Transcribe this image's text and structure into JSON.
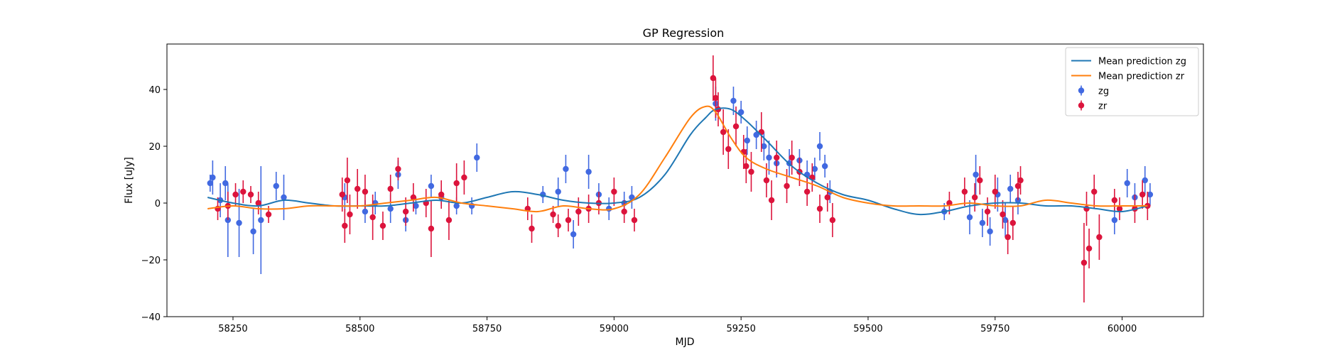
{
  "chart_data": {
    "type": "scatter",
    "title": "GP Regression",
    "xlabel": "MJD",
    "ylabel": "Flux [uJy]",
    "xlim": [
      58120,
      60160
    ],
    "ylim": [
      -40,
      56
    ],
    "xticks": [
      58250,
      58500,
      58750,
      59000,
      59250,
      59500,
      59750,
      60000
    ],
    "yticks": [
      -40,
      -20,
      0,
      20,
      40
    ],
    "grid": false,
    "legend_position": "top-right",
    "colors": {
      "zg_mean": "#1f77b4",
      "zr_mean": "#ff7f0e",
      "zg_points": "#4169e1",
      "zr_points": "#dc143c"
    },
    "legend": [
      {
        "label": "Mean prediction zg",
        "kind": "line",
        "color": "#1f77b4"
      },
      {
        "label": "Mean prediction zr",
        "kind": "line",
        "color": "#ff7f0e"
      },
      {
        "label": "zg",
        "kind": "errorbar",
        "color": "#4169e1"
      },
      {
        "label": "zr",
        "kind": "errorbar",
        "color": "#dc143c"
      }
    ],
    "series": [
      {
        "name": "Mean prediction zg",
        "kind": "line",
        "color": "#1f77b4",
        "x": [
          58200,
          58250,
          58300,
          58350,
          58400,
          58450,
          58500,
          58550,
          58600,
          58650,
          58700,
          58750,
          58800,
          58850,
          58900,
          58950,
          59000,
          59050,
          59100,
          59150,
          59180,
          59200,
          59230,
          59260,
          59300,
          59350,
          59400,
          59450,
          59500,
          59550,
          59600,
          59650,
          59700,
          59750,
          59800,
          59850,
          59900,
          59950,
          60000,
          60050
        ],
        "y": [
          2,
          0,
          -1,
          1,
          0,
          -1,
          -1,
          -1,
          0,
          1,
          0,
          2,
          4,
          3,
          1,
          0,
          0,
          2,
          10,
          24,
          30,
          33,
          33,
          29,
          22,
          13,
          7,
          3,
          1,
          -2,
          -4,
          -3,
          -1,
          0,
          0,
          -1,
          -1,
          -2,
          -3,
          -1
        ]
      },
      {
        "name": "Mean prediction zr",
        "kind": "line",
        "color": "#ff7f0e",
        "x": [
          58200,
          58250,
          58300,
          58350,
          58400,
          58450,
          58500,
          58550,
          58600,
          58650,
          58700,
          58750,
          58800,
          58850,
          58900,
          58950,
          59000,
          59050,
          59100,
          59150,
          59180,
          59200,
          59230,
          59260,
          59300,
          59350,
          59400,
          59450,
          59500,
          59550,
          59600,
          59650,
          59700,
          59750,
          59800,
          59850,
          59900,
          59950,
          60000,
          60050
        ],
        "y": [
          -2,
          -1,
          -2,
          -2,
          -1,
          -1,
          -1,
          0,
          1,
          2,
          0,
          -1,
          -2,
          -3,
          -1,
          -2,
          -2,
          3,
          16,
          30,
          34,
          32,
          23,
          16,
          12,
          9,
          6,
          2,
          0,
          -1,
          -1,
          -1,
          0,
          -1,
          -1,
          1,
          0,
          -1,
          -1,
          -1
        ]
      },
      {
        "name": "zg",
        "kind": "errorbar",
        "color": "#4169e1",
        "points": [
          [
            58205,
            7,
            3
          ],
          [
            58210,
            9,
            6
          ],
          [
            58225,
            1,
            6
          ],
          [
            58235,
            7,
            6
          ],
          [
            58240,
            -6,
            13
          ],
          [
            58262,
            -7,
            12
          ],
          [
            58290,
            -10,
            8
          ],
          [
            58305,
            -6,
            19
          ],
          [
            58335,
            6,
            5
          ],
          [
            58350,
            2,
            8
          ],
          [
            58470,
            2,
            5
          ],
          [
            58510,
            -3,
            4
          ],
          [
            58530,
            0,
            4
          ],
          [
            58560,
            -2,
            5
          ],
          [
            58575,
            10,
            5
          ],
          [
            58590,
            -6,
            4
          ],
          [
            58610,
            -1,
            3
          ],
          [
            58640,
            6,
            4
          ],
          [
            58660,
            2,
            3
          ],
          [
            58690,
            -1,
            3
          ],
          [
            58720,
            -1,
            3
          ],
          [
            58730,
            16,
            5
          ],
          [
            58860,
            3,
            3
          ],
          [
            58890,
            4,
            5
          ],
          [
            58905,
            12,
            5
          ],
          [
            58920,
            -11,
            5
          ],
          [
            58950,
            11,
            6
          ],
          [
            58970,
            3,
            4
          ],
          [
            58990,
            -2,
            4
          ],
          [
            59020,
            0,
            4
          ],
          [
            59035,
            2,
            4
          ],
          [
            59200,
            35,
            6
          ],
          [
            59235,
            36,
            5
          ],
          [
            59250,
            32,
            4
          ],
          [
            59262,
            22,
            5
          ],
          [
            59280,
            24,
            5
          ],
          [
            59295,
            20,
            5
          ],
          [
            59305,
            16,
            6
          ],
          [
            59320,
            14,
            5
          ],
          [
            59345,
            14,
            5
          ],
          [
            59365,
            15,
            4
          ],
          [
            59380,
            10,
            5
          ],
          [
            59395,
            12,
            4
          ],
          [
            59405,
            20,
            5
          ],
          [
            59415,
            13,
            4
          ],
          [
            59425,
            4,
            4
          ],
          [
            59650,
            -3,
            3
          ],
          [
            59700,
            -5,
            6
          ],
          [
            59712,
            10,
            7
          ],
          [
            59725,
            -7,
            5
          ],
          [
            59740,
            -10,
            5
          ],
          [
            59755,
            3,
            6
          ],
          [
            59770,
            -6,
            6
          ],
          [
            59780,
            5,
            5
          ],
          [
            59795,
            1,
            5
          ],
          [
            59985,
            -6,
            5
          ],
          [
            60010,
            7,
            5
          ],
          [
            60025,
            2,
            5
          ],
          [
            60045,
            8,
            5
          ],
          [
            60055,
            3,
            4
          ]
        ]
      },
      {
        "name": "zr",
        "kind": "errorbar",
        "color": "#dc143c",
        "points": [
          [
            58220,
            -2,
            4
          ],
          [
            58240,
            -1,
            5
          ],
          [
            58255,
            3,
            4
          ],
          [
            58270,
            4,
            4
          ],
          [
            58285,
            3,
            3
          ],
          [
            58300,
            0,
            4
          ],
          [
            58320,
            -4,
            3
          ],
          [
            58465,
            3,
            6
          ],
          [
            58470,
            -8,
            6
          ],
          [
            58475,
            8,
            8
          ],
          [
            58480,
            -4,
            7
          ],
          [
            58495,
            5,
            7
          ],
          [
            58510,
            4,
            6
          ],
          [
            58525,
            -5,
            8
          ],
          [
            58545,
            -8,
            5
          ],
          [
            58560,
            5,
            5
          ],
          [
            58575,
            12,
            4
          ],
          [
            58590,
            -3,
            5
          ],
          [
            58605,
            2,
            5
          ],
          [
            58630,
            0,
            5
          ],
          [
            58640,
            -9,
            10
          ],
          [
            58660,
            3,
            5
          ],
          [
            58675,
            -6,
            7
          ],
          [
            58690,
            7,
            7
          ],
          [
            58705,
            9,
            6
          ],
          [
            58830,
            -2,
            4
          ],
          [
            58838,
            -9,
            5
          ],
          [
            58880,
            -4,
            3
          ],
          [
            58890,
            -8,
            4
          ],
          [
            58910,
            -6,
            4
          ],
          [
            58930,
            -3,
            5
          ],
          [
            58950,
            -2,
            5
          ],
          [
            58970,
            0,
            4
          ],
          [
            59000,
            4,
            5
          ],
          [
            59020,
            -3,
            4
          ],
          [
            59040,
            -6,
            4
          ],
          [
            59195,
            44,
            8
          ],
          [
            59200,
            37,
            7
          ],
          [
            59205,
            33,
            6
          ],
          [
            59215,
            25,
            8
          ],
          [
            59225,
            19,
            7
          ],
          [
            59240,
            27,
            7
          ],
          [
            59255,
            18,
            6
          ],
          [
            59260,
            13,
            6
          ],
          [
            59270,
            11,
            7
          ],
          [
            59290,
            25,
            7
          ],
          [
            59300,
            8,
            6
          ],
          [
            59310,
            1,
            7
          ],
          [
            59320,
            16,
            6
          ],
          [
            59340,
            6,
            6
          ],
          [
            59350,
            16,
            6
          ],
          [
            59365,
            11,
            5
          ],
          [
            59380,
            4,
            5
          ],
          [
            59390,
            9,
            5
          ],
          [
            59405,
            -2,
            5
          ],
          [
            59420,
            2,
            5
          ],
          [
            59430,
            -6,
            6
          ],
          [
            59660,
            0,
            4
          ],
          [
            59690,
            4,
            5
          ],
          [
            59710,
            2,
            5
          ],
          [
            59720,
            8,
            5
          ],
          [
            59735,
            -3,
            5
          ],
          [
            59750,
            4,
            6
          ],
          [
            59765,
            -4,
            5
          ],
          [
            59775,
            -12,
            6
          ],
          [
            59785,
            -7,
            6
          ],
          [
            59795,
            6,
            5
          ],
          [
            59800,
            8,
            5
          ],
          [
            59925,
            -21,
            14
          ],
          [
            59930,
            -2,
            6
          ],
          [
            59935,
            -16,
            7
          ],
          [
            59945,
            4,
            6
          ],
          [
            59955,
            -12,
            8
          ],
          [
            59985,
            1,
            4
          ],
          [
            59995,
            -2,
            4
          ],
          [
            60025,
            -2,
            5
          ],
          [
            60040,
            3,
            5
          ],
          [
            60050,
            -1,
            5
          ]
        ]
      }
    ]
  }
}
